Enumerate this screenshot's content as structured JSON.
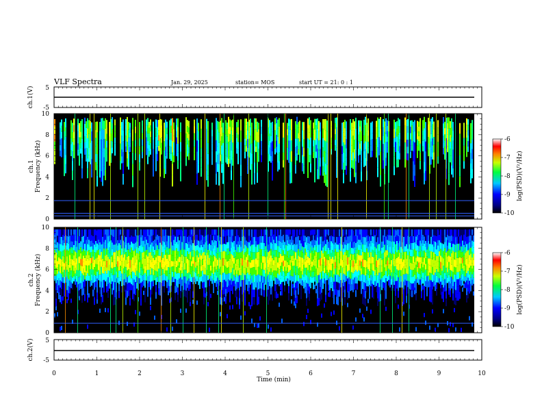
{
  "header": {
    "title": "VLF Spectra",
    "date": "Jan. 29, 2025",
    "station": "station= MOS",
    "start": "start  UT  =   21: 0  : 1"
  },
  "chart_data": [
    {
      "type": "line",
      "panel": "ch1-waveform",
      "ylabel": "ch.1(V)",
      "ylim": [
        -5,
        5
      ],
      "yticks": [
        5,
        -5
      ],
      "x": [
        0,
        10
      ],
      "series": [
        {
          "values": [
            0,
            0
          ]
        }
      ]
    },
    {
      "type": "heatmap",
      "panel": "ch1-spectrogram",
      "ylabel": "ch.1\nFrequency (kHz)",
      "ylim": [
        0,
        10
      ],
      "yticks": [
        0,
        2,
        4,
        6,
        8,
        10
      ],
      "xlim": [
        0,
        10
      ],
      "horizontal_lines_khz": [
        0.3,
        0.55,
        1.75
      ],
      "colorbar": {
        "label": "log(PSD)(V²/Hz)",
        "range": [
          -10,
          -6
        ],
        "ticks": [
          -6,
          -7,
          -8,
          -9,
          -10
        ]
      }
    },
    {
      "type": "heatmap",
      "panel": "ch2-spectrogram",
      "ylabel": "ch.2\nFrequency (kHz)",
      "ylim": [
        0,
        10
      ],
      "yticks": [
        0,
        2,
        4,
        6,
        8,
        10
      ],
      "xlim": [
        0,
        10
      ],
      "horizontal_lines_khz": [
        0.9
      ],
      "colorbar": {
        "label": "log(PSD)(V²/Hz)",
        "range": [
          -10,
          -6
        ],
        "ticks": [
          -6,
          -7,
          -8,
          -9,
          -10
        ]
      }
    },
    {
      "type": "line",
      "panel": "ch2-waveform",
      "ylabel": "ch.2(V)",
      "ylim": [
        -5,
        5
      ],
      "yticks": [
        5,
        -5
      ],
      "x": [
        0,
        10
      ],
      "series": [
        {
          "values": [
            0,
            0
          ]
        }
      ]
    }
  ],
  "xaxis": {
    "label": "Time (min)",
    "ticks": [
      "0",
      "1",
      "2",
      "3",
      "4",
      "5",
      "6",
      "7",
      "8",
      "9",
      "10"
    ]
  },
  "colors": {
    "background": "#000000",
    "colormap": [
      "#000080",
      "#0000ff",
      "#00a0ff",
      "#00ffff",
      "#00ff40",
      "#a0ff00",
      "#ffff00",
      "#ff8000",
      "#ff0000",
      "#ffffff"
    ]
  }
}
